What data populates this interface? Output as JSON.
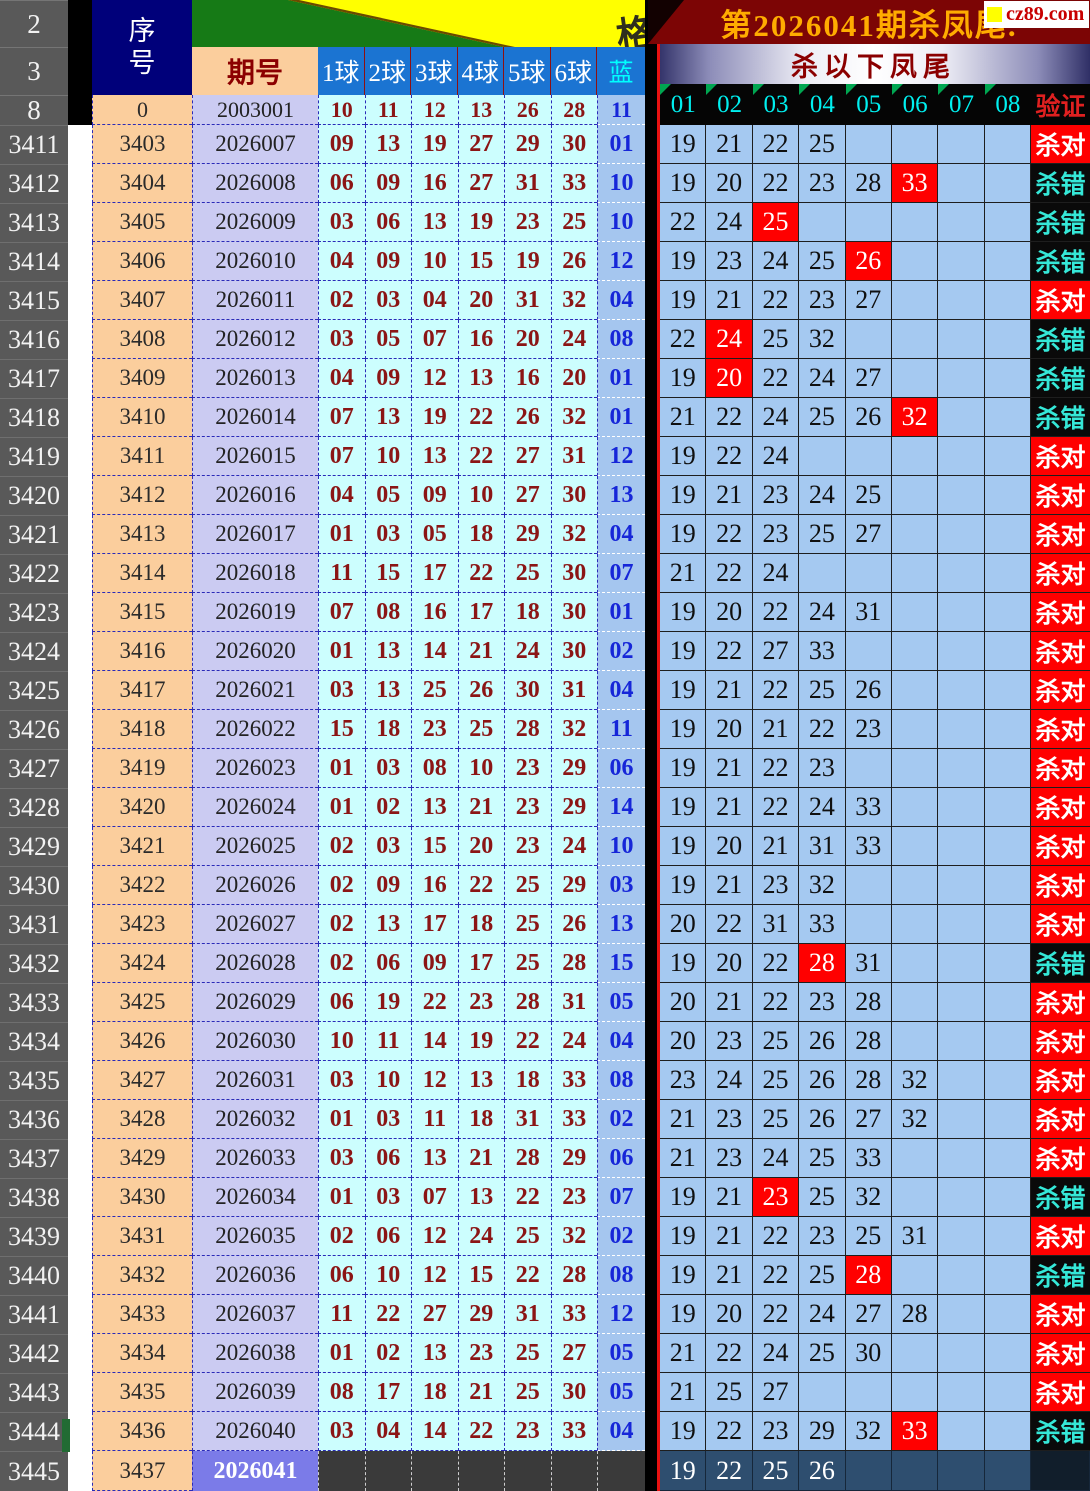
{
  "meta": {
    "accent_red": "#FF0000",
    "title_gold": "#FFAC00",
    "cell_blue_bg": "#A5C9F1",
    "ball_cyan_bg": "#CCFEFE",
    "kill_right_label": "杀对",
    "kill_wrong_label": "杀错"
  },
  "left_table": {
    "gutter_header_rows": [
      "2",
      "3",
      "8"
    ],
    "seq_header_line1": "序",
    "seq_header_line2": "号",
    "period_header": "期号",
    "ball_headers": [
      "1球",
      "2球",
      "3球",
      "4球",
      "5球",
      "6球"
    ],
    "blue_header": "蓝",
    "corner_glyph": "格",
    "base_row": {
      "seq": "0",
      "period": "2003001",
      "balls": [
        "10",
        "11",
        "12",
        "13",
        "26",
        "28"
      ],
      "blue": "11"
    },
    "rows": [
      {
        "gutter": "3411",
        "seq": "3403",
        "period": "2026007",
        "balls": [
          "09",
          "13",
          "19",
          "27",
          "29",
          "30"
        ],
        "blue": "01"
      },
      {
        "gutter": "3412",
        "seq": "3404",
        "period": "2026008",
        "balls": [
          "06",
          "09",
          "16",
          "27",
          "31",
          "33"
        ],
        "blue": "10"
      },
      {
        "gutter": "3413",
        "seq": "3405",
        "period": "2026009",
        "balls": [
          "03",
          "06",
          "13",
          "19",
          "23",
          "25"
        ],
        "blue": "10"
      },
      {
        "gutter": "3414",
        "seq": "3406",
        "period": "2026010",
        "balls": [
          "04",
          "09",
          "10",
          "15",
          "19",
          "26"
        ],
        "blue": "12"
      },
      {
        "gutter": "3415",
        "seq": "3407",
        "period": "2026011",
        "balls": [
          "02",
          "03",
          "04",
          "20",
          "31",
          "32"
        ],
        "blue": "04"
      },
      {
        "gutter": "3416",
        "seq": "3408",
        "period": "2026012",
        "balls": [
          "03",
          "05",
          "07",
          "16",
          "20",
          "24"
        ],
        "blue": "08"
      },
      {
        "gutter": "3417",
        "seq": "3409",
        "period": "2026013",
        "balls": [
          "04",
          "09",
          "12",
          "13",
          "16",
          "20"
        ],
        "blue": "01"
      },
      {
        "gutter": "3418",
        "seq": "3410",
        "period": "2026014",
        "balls": [
          "07",
          "13",
          "19",
          "22",
          "26",
          "32"
        ],
        "blue": "01"
      },
      {
        "gutter": "3419",
        "seq": "3411",
        "period": "2026015",
        "balls": [
          "07",
          "10",
          "13",
          "22",
          "27",
          "31"
        ],
        "blue": "12"
      },
      {
        "gutter": "3420",
        "seq": "3412",
        "period": "2026016",
        "balls": [
          "04",
          "05",
          "09",
          "10",
          "27",
          "30"
        ],
        "blue": "13"
      },
      {
        "gutter": "3421",
        "seq": "3413",
        "period": "2026017",
        "balls": [
          "01",
          "03",
          "05",
          "18",
          "29",
          "32"
        ],
        "blue": "04"
      },
      {
        "gutter": "3422",
        "seq": "3414",
        "period": "2026018",
        "balls": [
          "11",
          "15",
          "17",
          "22",
          "25",
          "30"
        ],
        "blue": "07"
      },
      {
        "gutter": "3423",
        "seq": "3415",
        "period": "2026019",
        "balls": [
          "07",
          "08",
          "16",
          "17",
          "18",
          "30"
        ],
        "blue": "01"
      },
      {
        "gutter": "3424",
        "seq": "3416",
        "period": "2026020",
        "balls": [
          "01",
          "13",
          "14",
          "21",
          "24",
          "30"
        ],
        "blue": "02"
      },
      {
        "gutter": "3425",
        "seq": "3417",
        "period": "2026021",
        "balls": [
          "03",
          "13",
          "25",
          "26",
          "30",
          "31"
        ],
        "blue": "04"
      },
      {
        "gutter": "3426",
        "seq": "3418",
        "period": "2026022",
        "balls": [
          "15",
          "18",
          "23",
          "25",
          "28",
          "32"
        ],
        "blue": "11"
      },
      {
        "gutter": "3427",
        "seq": "3419",
        "period": "2026023",
        "balls": [
          "01",
          "03",
          "08",
          "10",
          "23",
          "29"
        ],
        "blue": "06"
      },
      {
        "gutter": "3428",
        "seq": "3420",
        "period": "2026024",
        "balls": [
          "01",
          "02",
          "13",
          "21",
          "23",
          "29"
        ],
        "blue": "14"
      },
      {
        "gutter": "3429",
        "seq": "3421",
        "period": "2026025",
        "balls": [
          "02",
          "03",
          "15",
          "20",
          "23",
          "24"
        ],
        "blue": "10"
      },
      {
        "gutter": "3430",
        "seq": "3422",
        "period": "2026026",
        "balls": [
          "02",
          "09",
          "16",
          "22",
          "25",
          "29"
        ],
        "blue": "03"
      },
      {
        "gutter": "3431",
        "seq": "3423",
        "period": "2026027",
        "balls": [
          "02",
          "13",
          "17",
          "18",
          "25",
          "26"
        ],
        "blue": "13"
      },
      {
        "gutter": "3432",
        "seq": "3424",
        "period": "2026028",
        "balls": [
          "02",
          "06",
          "09",
          "17",
          "25",
          "28"
        ],
        "blue": "15"
      },
      {
        "gutter": "3433",
        "seq": "3425",
        "period": "2026029",
        "balls": [
          "06",
          "19",
          "22",
          "23",
          "28",
          "31"
        ],
        "blue": "05"
      },
      {
        "gutter": "3434",
        "seq": "3426",
        "period": "2026030",
        "balls": [
          "10",
          "11",
          "14",
          "19",
          "22",
          "24"
        ],
        "blue": "04"
      },
      {
        "gutter": "3435",
        "seq": "3427",
        "period": "2026031",
        "balls": [
          "03",
          "10",
          "12",
          "13",
          "18",
          "33"
        ],
        "blue": "08"
      },
      {
        "gutter": "3436",
        "seq": "3428",
        "period": "2026032",
        "balls": [
          "01",
          "03",
          "11",
          "18",
          "31",
          "33"
        ],
        "blue": "02"
      },
      {
        "gutter": "3437",
        "seq": "3429",
        "period": "2026033",
        "balls": [
          "03",
          "06",
          "13",
          "21",
          "28",
          "29"
        ],
        "blue": "06"
      },
      {
        "gutter": "3438",
        "seq": "3430",
        "period": "2026034",
        "balls": [
          "01",
          "03",
          "07",
          "13",
          "22",
          "23"
        ],
        "blue": "07"
      },
      {
        "gutter": "3439",
        "seq": "3431",
        "period": "2026035",
        "balls": [
          "02",
          "06",
          "12",
          "24",
          "25",
          "32"
        ],
        "blue": "02"
      },
      {
        "gutter": "3440",
        "seq": "3432",
        "period": "2026036",
        "balls": [
          "06",
          "10",
          "12",
          "15",
          "22",
          "28"
        ],
        "blue": "08"
      },
      {
        "gutter": "3441",
        "seq": "3433",
        "period": "2026037",
        "balls": [
          "11",
          "22",
          "27",
          "29",
          "31",
          "33"
        ],
        "blue": "12"
      },
      {
        "gutter": "3442",
        "seq": "3434",
        "period": "2026038",
        "balls": [
          "01",
          "02",
          "13",
          "23",
          "25",
          "27"
        ],
        "blue": "05"
      },
      {
        "gutter": "3443",
        "seq": "3435",
        "period": "2026039",
        "balls": [
          "08",
          "17",
          "18",
          "21",
          "25",
          "30"
        ],
        "blue": "05"
      },
      {
        "gutter": "3444",
        "seq": "3436",
        "period": "2026040",
        "balls": [
          "03",
          "04",
          "14",
          "22",
          "23",
          "33"
        ],
        "blue": "04"
      }
    ],
    "last_row": {
      "gutter": "3445",
      "seq": "3437",
      "period": "2026041"
    }
  },
  "right_panel": {
    "title": "第2026041期杀凤尾.",
    "logo_text": "cz89.com",
    "subtitle": "杀以下凤尾",
    "col_headers": [
      "01",
      "02",
      "03",
      "04",
      "05",
      "06",
      "07",
      "08"
    ],
    "verify_header": "验证",
    "rows": [
      {
        "values": [
          "19",
          "21",
          "22",
          "25"
        ],
        "red": [],
        "result": "杀对"
      },
      {
        "values": [
          "19",
          "20",
          "22",
          "23",
          "28",
          "33"
        ],
        "red": [
          5
        ],
        "result": "杀错"
      },
      {
        "values": [
          "22",
          "24",
          "25"
        ],
        "red": [
          2
        ],
        "result": "杀错"
      },
      {
        "values": [
          "19",
          "23",
          "24",
          "25",
          "26"
        ],
        "red": [
          4
        ],
        "result": "杀错"
      },
      {
        "values": [
          "19",
          "21",
          "22",
          "23",
          "27"
        ],
        "red": [],
        "result": "杀对"
      },
      {
        "values": [
          "22",
          "24",
          "25",
          "32"
        ],
        "red": [
          1
        ],
        "result": "杀错"
      },
      {
        "values": [
          "19",
          "20",
          "22",
          "24",
          "27"
        ],
        "red": [
          1
        ],
        "result": "杀错"
      },
      {
        "values": [
          "21",
          "22",
          "24",
          "25",
          "26",
          "32"
        ],
        "red": [
          5
        ],
        "result": "杀错"
      },
      {
        "values": [
          "19",
          "22",
          "24"
        ],
        "red": [],
        "result": "杀对"
      },
      {
        "values": [
          "19",
          "21",
          "23",
          "24",
          "25"
        ],
        "red": [],
        "result": "杀对"
      },
      {
        "values": [
          "19",
          "22",
          "23",
          "25",
          "27"
        ],
        "red": [],
        "result": "杀对"
      },
      {
        "values": [
          "21",
          "22",
          "24"
        ],
        "red": [],
        "result": "杀对"
      },
      {
        "values": [
          "19",
          "20",
          "22",
          "24",
          "31"
        ],
        "red": [],
        "result": "杀对"
      },
      {
        "values": [
          "19",
          "22",
          "27",
          "33"
        ],
        "red": [],
        "result": "杀对"
      },
      {
        "values": [
          "19",
          "21",
          "22",
          "25",
          "26"
        ],
        "red": [],
        "result": "杀对"
      },
      {
        "values": [
          "19",
          "20",
          "21",
          "22",
          "23"
        ],
        "red": [],
        "result": "杀对"
      },
      {
        "values": [
          "19",
          "21",
          "22",
          "23"
        ],
        "red": [],
        "result": "杀对"
      },
      {
        "values": [
          "19",
          "21",
          "22",
          "24",
          "33"
        ],
        "red": [],
        "result": "杀对"
      },
      {
        "values": [
          "19",
          "20",
          "21",
          "31",
          "33"
        ],
        "red": [],
        "result": "杀对"
      },
      {
        "values": [
          "19",
          "21",
          "23",
          "32"
        ],
        "red": [],
        "result": "杀对"
      },
      {
        "values": [
          "20",
          "22",
          "31",
          "33"
        ],
        "red": [],
        "result": "杀对"
      },
      {
        "values": [
          "19",
          "20",
          "22",
          "28",
          "31"
        ],
        "red": [
          3
        ],
        "result": "杀错"
      },
      {
        "values": [
          "20",
          "21",
          "22",
          "23",
          "28"
        ],
        "red": [],
        "result": "杀对"
      },
      {
        "values": [
          "20",
          "23",
          "25",
          "26",
          "28"
        ],
        "red": [],
        "result": "杀对"
      },
      {
        "values": [
          "23",
          "24",
          "25",
          "26",
          "28",
          "32"
        ],
        "red": [],
        "result": "杀对"
      },
      {
        "values": [
          "21",
          "23",
          "25",
          "26",
          "27",
          "32"
        ],
        "red": [],
        "result": "杀对"
      },
      {
        "values": [
          "21",
          "23",
          "24",
          "25",
          "33"
        ],
        "red": [],
        "result": "杀对"
      },
      {
        "values": [
          "19",
          "21",
          "23",
          "25",
          "32"
        ],
        "red": [
          2
        ],
        "result": "杀错"
      },
      {
        "values": [
          "19",
          "21",
          "22",
          "23",
          "25",
          "31"
        ],
        "red": [],
        "result": "杀对"
      },
      {
        "values": [
          "19",
          "21",
          "22",
          "25",
          "28"
        ],
        "red": [
          4
        ],
        "result": "杀错"
      },
      {
        "values": [
          "19",
          "20",
          "22",
          "24",
          "27",
          "28"
        ],
        "red": [],
        "result": "杀对"
      },
      {
        "values": [
          "21",
          "22",
          "24",
          "25",
          "30"
        ],
        "red": [],
        "result": "杀对"
      },
      {
        "values": [
          "21",
          "25",
          "27"
        ],
        "red": [],
        "result": "杀对"
      },
      {
        "values": [
          "19",
          "22",
          "23",
          "29",
          "32",
          "33"
        ],
        "red": [
          5
        ],
        "result": "杀错"
      }
    ],
    "last_row": {
      "values": [
        "19",
        "22",
        "25",
        "26"
      ]
    }
  }
}
